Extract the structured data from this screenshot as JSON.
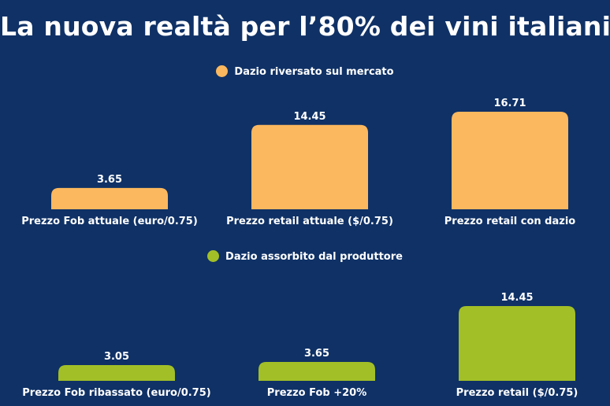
{
  "title": "La nuova realtà per l’80% dei vini italiani",
  "colors": {
    "background": "#0f3166",
    "market": "#fcb85e",
    "producer": "#a2bf27"
  },
  "chart_data": [
    {
      "type": "bar",
      "legend": "Dazio riversato sul mercato",
      "categories": [
        "Prezzo Fob attuale (euro/0.75)",
        "Prezzo retail attuale ($/0.75)",
        "Prezzo retail con dazio"
      ],
      "values": [
        3.65,
        14.45,
        16.71
      ],
      "value_labels": [
        "3.65",
        "14.45",
        "16.71"
      ],
      "color": "#fcb85e"
    },
    {
      "type": "bar",
      "legend": "Dazio assorbito dal produttore",
      "categories": [
        "Prezzo Fob ribassato (euro/0.75)",
        "Prezzo Fob +20%",
        "Prezzo retail ($/0.75)"
      ],
      "values": [
        3.05,
        3.65,
        14.45
      ],
      "value_labels": [
        "3.05",
        "3.65",
        "14.45"
      ],
      "color": "#a2bf27"
    }
  ]
}
